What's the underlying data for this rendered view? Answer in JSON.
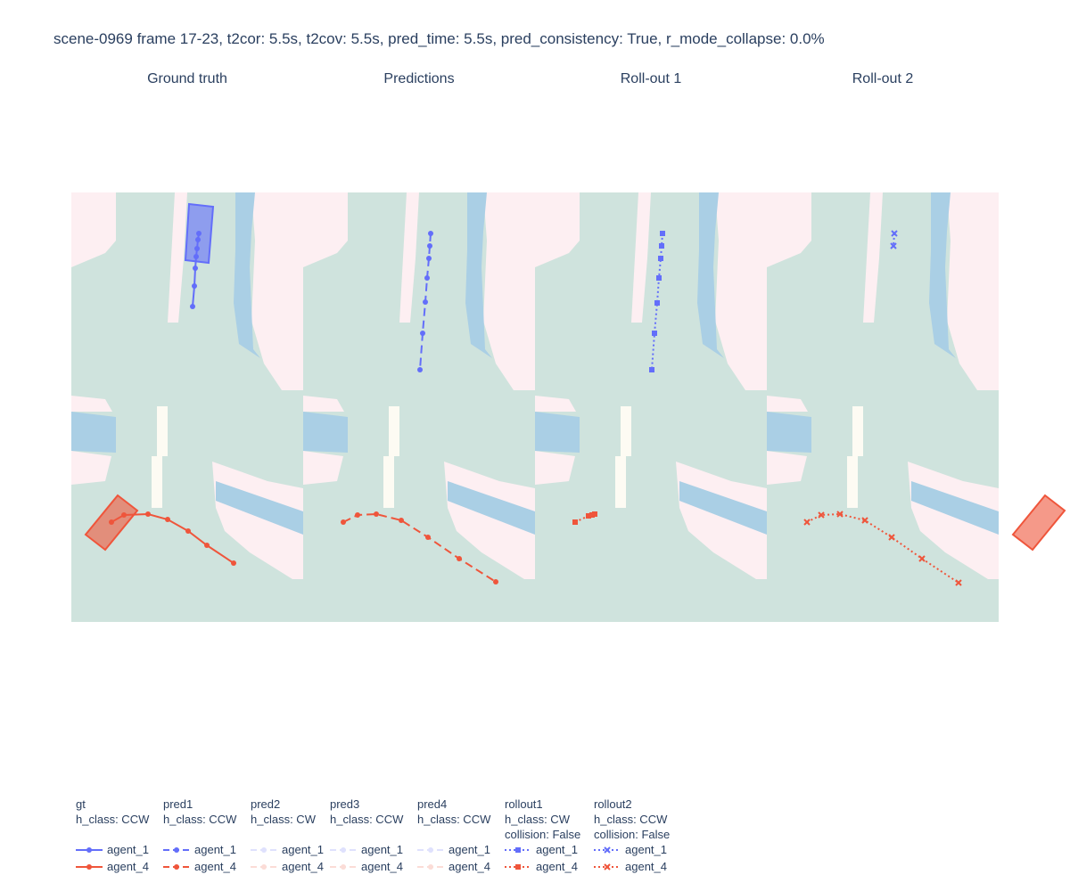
{
  "title": "scene-0969 frame 17-23, t2cor: 5.5s, t2cov: 5.5s, pred_time: 5.5s, pred_consistency: True, r_mode_collapse: 0.0%",
  "colors": {
    "background": "#cfe3dd",
    "sidewalk": "#fdeff2",
    "crosswalk": "#aacfe5",
    "divider": "#fdfbf3",
    "agent_1": "#636efa",
    "agent_4": "#ef553b"
  },
  "chart_data": {
    "type": "line",
    "panels": [
      {
        "title": "Ground truth",
        "traces": [
          {
            "agent": "agent_1",
            "style": "solid",
            "marker": "circle",
            "points": [
              [
                223,
                262
              ],
              [
                222,
                269
              ],
              [
                221,
                279
              ],
              [
                220,
                288
              ],
              [
                219,
                301
              ],
              [
                218,
                321
              ],
              [
                216,
                344
              ]
            ]
          },
          {
            "agent": "agent_4",
            "style": "solid",
            "marker": "circle",
            "points": [
              [
                125,
                586
              ],
              [
                139,
                578
              ],
              [
                166,
                577
              ],
              [
                188,
                583
              ],
              [
                211,
                596
              ],
              [
                232,
                612
              ],
              [
                262,
                632
              ]
            ]
          }
        ]
      },
      {
        "title": "Predictions",
        "traces": [
          {
            "agent": "agent_1",
            "style": "dash",
            "marker": "circle",
            "points": [
              [
                483,
                262
              ],
              [
                482,
                276
              ],
              [
                481,
                290
              ],
              [
                479,
                312
              ],
              [
                477,
                339
              ],
              [
                474,
                374
              ],
              [
                471,
                415
              ]
            ]
          },
          {
            "agent": "agent_4",
            "style": "dash",
            "marker": "circle",
            "points": [
              [
                385,
                586
              ],
              [
                401,
                578
              ],
              [
                422,
                577
              ],
              [
                450,
                584
              ],
              [
                480,
                603
              ],
              [
                515,
                627
              ],
              [
                556,
                653
              ]
            ]
          }
        ]
      },
      {
        "title": "Roll-out 1",
        "traces": [
          {
            "agent": "agent_1",
            "style": "dot",
            "marker": "square",
            "points": [
              [
                743,
                262
              ],
              [
                742,
                276
              ],
              [
                741,
                290
              ],
              [
                739,
                312
              ],
              [
                737,
                340
              ],
              [
                734,
                374
              ],
              [
                731,
                415
              ]
            ]
          },
          {
            "agent": "agent_4",
            "style": "dot",
            "marker": "square",
            "points": [
              [
                645,
                586
              ],
              [
                660,
                579
              ],
              [
                664,
                578
              ],
              [
                667,
                577
              ]
            ]
          }
        ]
      },
      {
        "title": "Roll-out 2",
        "traces": [
          {
            "agent": "agent_1",
            "style": "dot",
            "marker": "x",
            "points": [
              [
                1003,
                262
              ],
              [
                1002,
                276
              ]
            ]
          },
          {
            "agent": "agent_4",
            "style": "dot",
            "marker": "x",
            "points": [
              [
                905,
                586
              ],
              [
                921,
                578
              ],
              [
                942,
                577
              ],
              [
                970,
                584
              ],
              [
                1000,
                603
              ],
              [
                1034,
                627
              ],
              [
                1075,
                654
              ]
            ]
          }
        ]
      }
    ],
    "vehicles": [
      {
        "agent": "agent_1",
        "polygon_x": [
          212,
          239,
          234,
          208
        ],
        "polygon_y": [
          229,
          232,
          295,
          292
        ]
      },
      {
        "agent": "agent_4",
        "polygon_x": [
          132,
          154,
          118,
          96
        ],
        "polygon_y": [
          556,
          573,
          617,
          600
        ]
      }
    ],
    "legend": [
      {
        "title": [
          "gt",
          "h_class: CCW"
        ],
        "style": "solid",
        "marker": "circle",
        "faded": false,
        "items": [
          "agent_1",
          "agent_4"
        ]
      },
      {
        "title": [
          "pred1",
          "h_class: CCW"
        ],
        "style": "dash",
        "marker": "circle",
        "faded": false,
        "items": [
          "agent_1",
          "agent_4"
        ]
      },
      {
        "title": [
          "pred2",
          "h_class: CW"
        ],
        "style": "dash",
        "marker": "circle",
        "faded": true,
        "items": [
          "agent_1",
          "agent_4"
        ]
      },
      {
        "title": [
          "pred3",
          "h_class: CCW"
        ],
        "style": "dash",
        "marker": "circle",
        "faded": true,
        "items": [
          "agent_1",
          "agent_4"
        ]
      },
      {
        "title": [
          "pred4",
          "h_class: CCW"
        ],
        "style": "dash",
        "marker": "circle",
        "faded": true,
        "items": [
          "agent_1",
          "agent_4"
        ]
      },
      {
        "title": [
          "rollout1",
          "h_class: CW",
          "collision: False"
        ],
        "style": "dot",
        "marker": "square",
        "faded": false,
        "items": [
          "agent_1",
          "agent_4"
        ]
      },
      {
        "title": [
          "rollout2",
          "h_class: CCW",
          "collision: False"
        ],
        "style": "dot",
        "marker": "x",
        "faded": false,
        "items": [
          "agent_1",
          "agent_4"
        ]
      }
    ]
  }
}
